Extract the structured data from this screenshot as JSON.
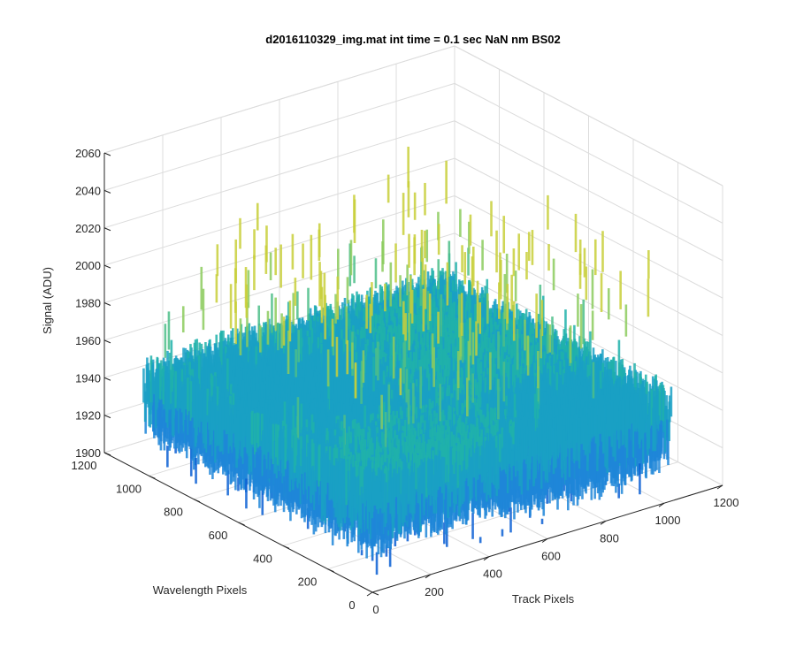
{
  "chart_data": {
    "type": "surface",
    "title": "d2016110329_img.mat int time = 0.1 sec  NaN nm BS02",
    "xlabel": "Track Pixels",
    "ylabel": "Wavelength Pixels",
    "zlabel": "Signal (ADU)",
    "xlim": [
      0,
      1200
    ],
    "ylim": [
      0,
      1200
    ],
    "zlim": [
      1900,
      2060
    ],
    "xticks": [
      "0",
      "200",
      "400",
      "600",
      "800",
      "1000",
      "1200"
    ],
    "yticks": [
      "0",
      "200",
      "400",
      "600",
      "800",
      "1000",
      "1200"
    ],
    "zticks": [
      "1900",
      "1920",
      "1940",
      "1960",
      "1980",
      "2000",
      "2020",
      "2040",
      "2060"
    ],
    "x_extent": [
      0,
      1024
    ],
    "y_extent": [
      0,
      1024
    ],
    "z_range": [
      1900,
      2035
    ],
    "z_typical": [
      1935,
      1965
    ],
    "grid": true,
    "colormap": [
      "#0b5fd4",
      "#1f86d8",
      "#1aa0c4",
      "#20b2aa",
      "#4cbe88",
      "#8ccb5e",
      "#c8cf3a"
    ]
  }
}
